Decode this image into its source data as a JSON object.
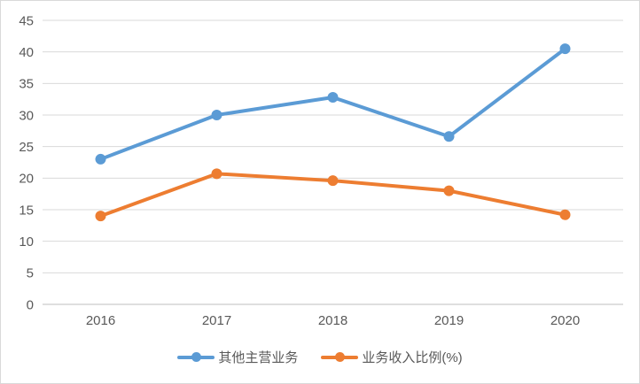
{
  "chart_data": {
    "type": "line",
    "categories": [
      "2016",
      "2017",
      "2018",
      "2019",
      "2020"
    ],
    "series": [
      {
        "name": "其他主营业务",
        "color": "#5B9BD5",
        "values": [
          23,
          30,
          32.8,
          26.6,
          40.5
        ]
      },
      {
        "name": "业务收入比例(%)",
        "color": "#ED7D31",
        "values": [
          14,
          20.7,
          19.6,
          18,
          14.2
        ]
      }
    ],
    "title": "",
    "xlabel": "",
    "ylabel": "",
    "ylim": [
      0,
      45
    ],
    "ytick_step": 5,
    "grid": true,
    "legend_position": "bottom",
    "colors": {
      "gridline": "#d9d9d9",
      "axis_line": "#bfbfbf",
      "tick_label": "#595959",
      "background": "#ffffff",
      "frame_border": "#d9d9d9"
    }
  }
}
